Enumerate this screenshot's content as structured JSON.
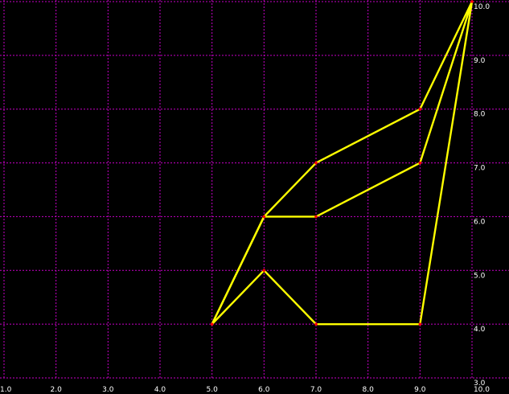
{
  "chart_data": {
    "type": "line",
    "title": "",
    "xlabel": "",
    "ylabel": "",
    "xlim": [
      1.0,
      10.0
    ],
    "ylim": [
      3.0,
      10.0
    ],
    "grid": true,
    "x_ticks": [
      "1.0",
      "2.0",
      "3.0",
      "4.0",
      "5.0",
      "6.0",
      "7.0",
      "8.0",
      "9.0",
      "10.0"
    ],
    "y_ticks": [
      "3.0",
      "4.0",
      "5.0",
      "6.0",
      "7.0",
      "8.0",
      "9.0",
      "10.0"
    ],
    "series": [
      {
        "points": [
          [
            5,
            4
          ],
          [
            6,
            6
          ],
          [
            7,
            7
          ],
          [
            9,
            8
          ],
          [
            10,
            10
          ]
        ]
      },
      {
        "points": [
          [
            5,
            4
          ],
          [
            6,
            6
          ],
          [
            7,
            6
          ],
          [
            9,
            7
          ],
          [
            10,
            10
          ]
        ]
      },
      {
        "points": [
          [
            5,
            4
          ],
          [
            6,
            5
          ],
          [
            7,
            4
          ],
          [
            9,
            4
          ],
          [
            10,
            10
          ]
        ]
      }
    ],
    "colors": {
      "background": "#000000",
      "grid": "#c800c8",
      "line": "#ffff00",
      "node": "#ff0000",
      "text": "#ffffff"
    }
  }
}
